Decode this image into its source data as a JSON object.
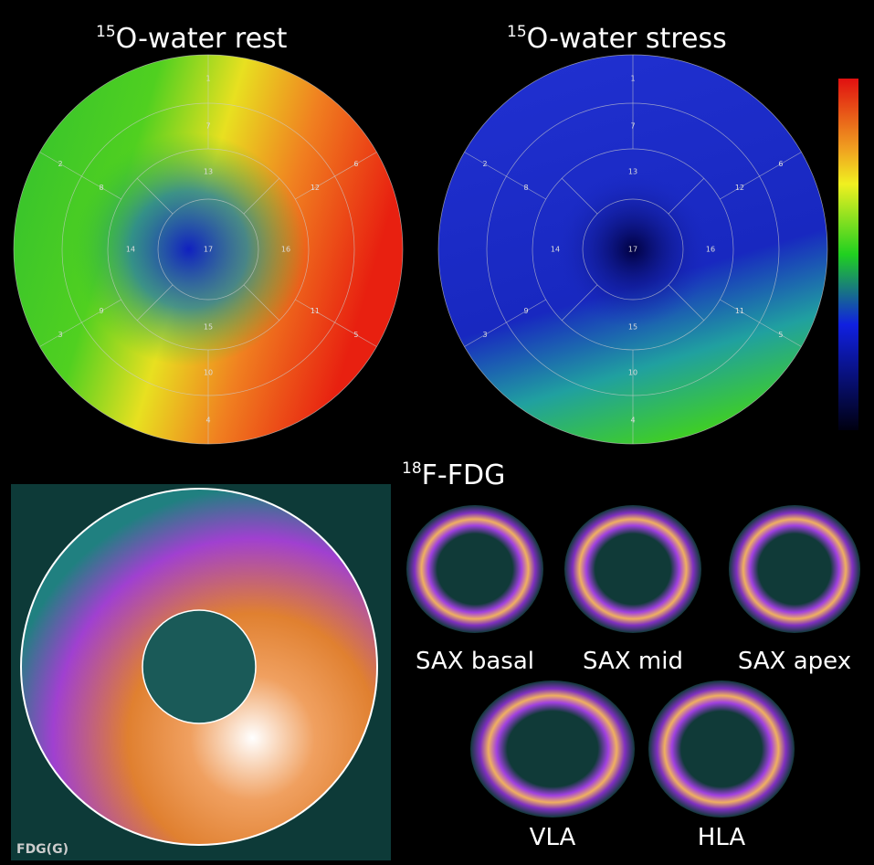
{
  "panels": {
    "rest": {
      "isotope": "15",
      "title": "O-water rest",
      "segments": [
        1,
        2,
        3,
        4,
        5,
        6,
        7,
        8,
        9,
        10,
        11,
        12,
        13,
        14,
        15,
        16,
        17
      ]
    },
    "stress": {
      "isotope": "15",
      "title": "O-water stress",
      "segments": [
        1,
        2,
        3,
        4,
        5,
        6,
        7,
        8,
        9,
        10,
        11,
        12,
        13,
        14,
        15,
        16,
        17
      ]
    },
    "fdg": {
      "isotope": "18",
      "title": "F-FDG",
      "map_label": "FDG(G)",
      "views": [
        "SAX basal",
        "SAX mid",
        "SAX apex",
        "VLA",
        "HLA"
      ]
    }
  }
}
